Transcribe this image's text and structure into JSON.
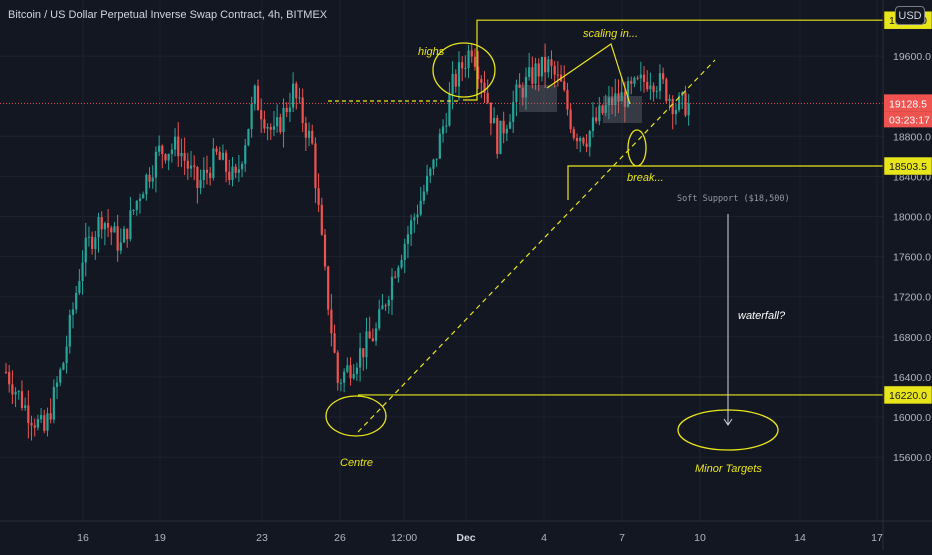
{
  "header": {
    "title": "Bitcoin / US Dollar Perpetual Inverse Swap Contract, 4h, BITMEX",
    "currency": "USD"
  },
  "chart_data": {
    "type": "candlestick",
    "symbol": "XBTUSD",
    "timeframe": "4h",
    "exchange": "BITMEX",
    "x_ticks": [
      "16",
      "19",
      "23",
      "26",
      "12:00",
      "Dec",
      "4",
      "7",
      "10",
      "14",
      "17"
    ],
    "y_ticks": [
      "15600.0",
      "16000.0",
      "16400.0",
      "16800.0",
      "17200.0",
      "17600.0",
      "18000.0",
      "18400.0",
      "18800.0",
      "19600.0"
    ],
    "ylim": [
      15400,
      20400
    ],
    "grid": true,
    "last_price": "19128.5",
    "countdown": "03:23:17",
    "levels": [
      {
        "value": 19958,
        "label": "19958.0"
      },
      {
        "value": 18503.5,
        "label": "18503.5"
      },
      {
        "value": 16220,
        "label": "16220.0"
      }
    ],
    "annotations": {
      "highs": "highs",
      "scaling": "scaling in...",
      "break": "break...",
      "support": "Soft Support ($18,500)",
      "waterfall": "waterfall?",
      "centre": "Centre",
      "targets": "Minor Targets"
    },
    "keypoints": [
      [
        0,
        16450
      ],
      [
        6,
        16100
      ],
      [
        12,
        15850
      ],
      [
        18,
        16550
      ],
      [
        24,
        17600
      ],
      [
        30,
        18000
      ],
      [
        36,
        17700
      ],
      [
        42,
        18250
      ],
      [
        48,
        18650
      ],
      [
        54,
        18700
      ],
      [
        60,
        18300
      ],
      [
        66,
        18600
      ],
      [
        72,
        18350
      ],
      [
        78,
        19200
      ],
      [
        84,
        18800
      ],
      [
        90,
        19250
      ],
      [
        96,
        18700
      ],
      [
        100,
        17400
      ],
      [
        104,
        16350
      ],
      [
        110,
        16600
      ],
      [
        116,
        16850
      ],
      [
        122,
        17500
      ],
      [
        128,
        18000
      ],
      [
        134,
        18500
      ],
      [
        140,
        19300
      ],
      [
        146,
        19700
      ],
      [
        150,
        19300
      ],
      [
        154,
        18750
      ],
      [
        160,
        19200
      ],
      [
        166,
        19450
      ],
      [
        170,
        19500
      ],
      [
        174,
        19300
      ],
      [
        178,
        18850
      ],
      [
        182,
        18800
      ],
      [
        186,
        19000
      ],
      [
        190,
        19150
      ],
      [
        194,
        19200
      ],
      [
        198,
        19300
      ],
      [
        202,
        19400
      ],
      [
        206,
        19300
      ],
      [
        210,
        19100
      ],
      [
        214,
        19128.5
      ]
    ]
  }
}
